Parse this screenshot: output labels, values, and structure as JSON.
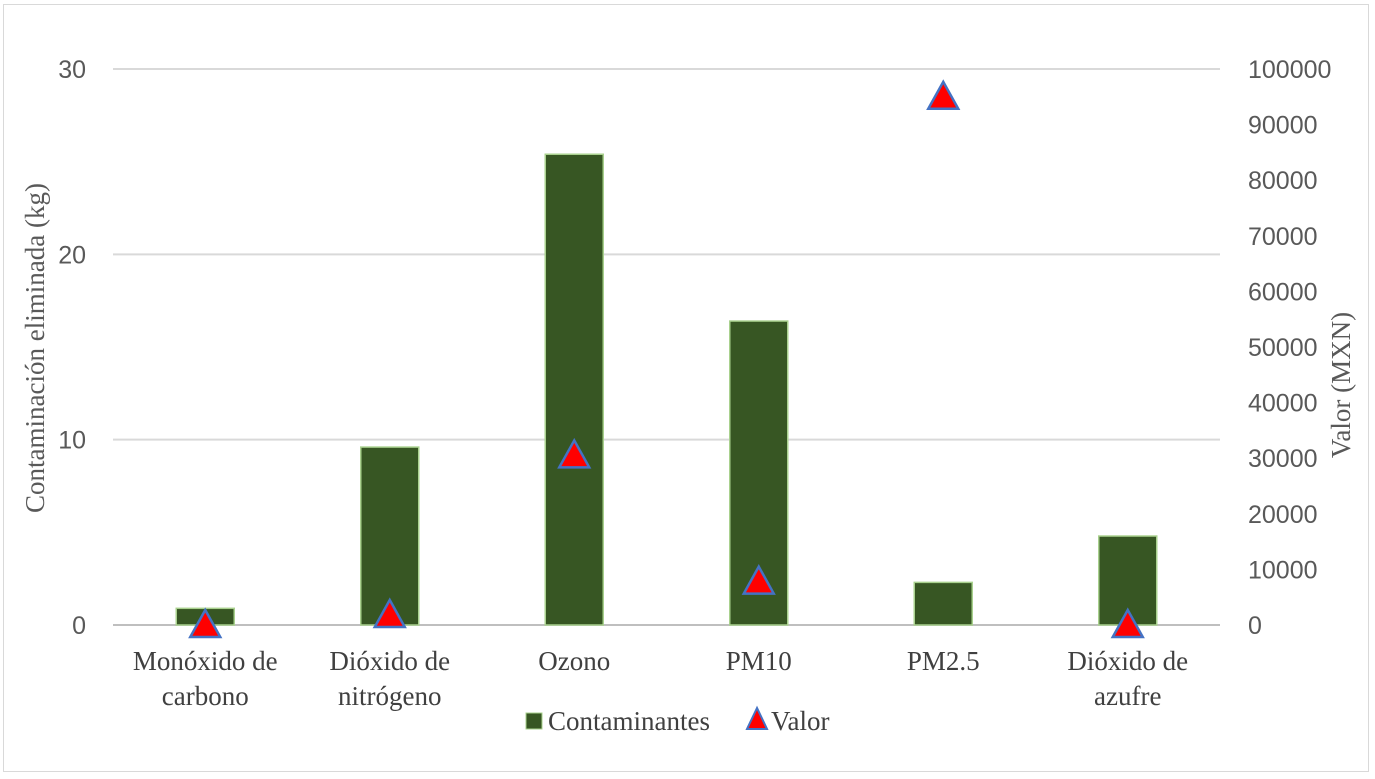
{
  "chart_data": {
    "type": "bar",
    "categories": [
      [
        "Monóxido de",
        "carbono"
      ],
      [
        "Dióxido de",
        "nitrógeno"
      ],
      [
        "Ozono"
      ],
      [
        "PM10"
      ],
      [
        "PM2.5"
      ],
      [
        "Dióxido de",
        "azufre"
      ]
    ],
    "series": [
      {
        "name": "Contaminantes",
        "type": "bar",
        "axis": "left",
        "color": "#375623",
        "values": [
          0.9,
          9.6,
          25.4,
          16.4,
          2.3,
          4.8
        ]
      },
      {
        "name": "Valor",
        "type": "scatter",
        "marker": "triangle",
        "axis": "right",
        "color": "#ff0000",
        "values": [
          0,
          1800,
          30500,
          7800,
          95000,
          0
        ]
      }
    ],
    "ylabel": "Contaminación eliminada (kg)",
    "y2label": "Valor (MXN)",
    "ylim": [
      0,
      30
    ],
    "y2lim": [
      0,
      100000
    ],
    "yticks": [
      "0",
      "10",
      "20",
      "30"
    ],
    "y2ticks": [
      "0",
      "10000",
      "20000",
      "30000",
      "40000",
      "50000",
      "60000",
      "70000",
      "80000",
      "90000",
      "100000"
    ],
    "grid": true,
    "legend": "bottom"
  }
}
